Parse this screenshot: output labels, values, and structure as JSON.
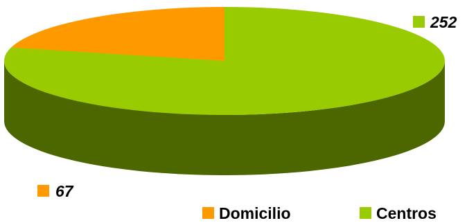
{
  "chart_data": {
    "type": "pie",
    "style": "3d",
    "series": [
      {
        "name": "Domicilio",
        "value": 67,
        "color": "#FF9900",
        "side_color": "#7F4C00"
      },
      {
        "name": "Centros",
        "value": 252,
        "color": "#99CC00",
        "side_color": "#4C6600"
      }
    ],
    "data_labels": [
      "67",
      "252"
    ],
    "legend": {
      "placement": "bottom-right",
      "entries": [
        "Domicilio",
        "Centros"
      ]
    },
    "grid": false
  }
}
